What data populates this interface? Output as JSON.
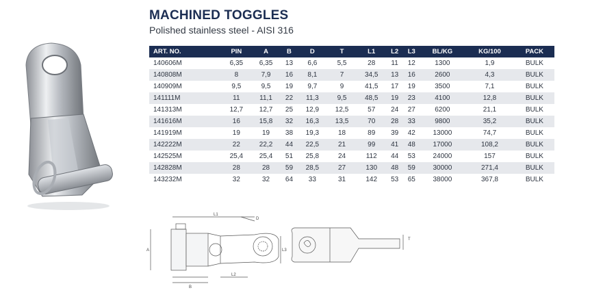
{
  "header": {
    "title": "MACHINED TOGGLES",
    "subtitle": "Polished stainless steel - AISI 316"
  },
  "table": {
    "columns": [
      "ART. NO.",
      "PIN",
      "A",
      "B",
      "D",
      "T",
      "L1",
      "L2",
      "L3",
      "BL/KG",
      "KG/100",
      "PACK"
    ],
    "rows": [
      [
        "140606M",
        "6,35",
        "6,35",
        "13",
        "6,6",
        "5,5",
        "28",
        "11",
        "12",
        "1300",
        "1,9",
        "BULK"
      ],
      [
        "140808M",
        "8",
        "7,9",
        "16",
        "8,1",
        "7",
        "34,5",
        "13",
        "16",
        "2600",
        "4,3",
        "BULK"
      ],
      [
        "140909M",
        "9,5",
        "9,5",
        "19",
        "9,7",
        "9",
        "41,5",
        "17",
        "19",
        "3500",
        "7,1",
        "BULK"
      ],
      [
        "141111M",
        "11",
        "11,1",
        "22",
        "11,3",
        "9,5",
        "48,5",
        "19",
        "23",
        "4100",
        "12,8",
        "BULK"
      ],
      [
        "141313M",
        "12,7",
        "12,7",
        "25",
        "12,9",
        "12,5",
        "57",
        "24",
        "27",
        "6200",
        "21,1",
        "BULK"
      ],
      [
        "141616M",
        "16",
        "15,8",
        "32",
        "16,3",
        "13,5",
        "70",
        "28",
        "33",
        "9800",
        "35,2",
        "BULK"
      ],
      [
        "141919M",
        "19",
        "19",
        "38",
        "19,3",
        "18",
        "89",
        "39",
        "42",
        "13000",
        "74,7",
        "BULK"
      ],
      [
        "142222M",
        "22",
        "22,2",
        "44",
        "22,5",
        "21",
        "99",
        "41",
        "48",
        "17000",
        "108,2",
        "BULK"
      ],
      [
        "142525M",
        "25,4",
        "25,4",
        "51",
        "25,8",
        "24",
        "112",
        "44",
        "53",
        "24000",
        "157",
        "BULK"
      ],
      [
        "142828M",
        "28",
        "28",
        "59",
        "28,5",
        "27",
        "130",
        "48",
        "59",
        "30000",
        "271,4",
        "BULK"
      ],
      [
        "143232M",
        "32",
        "32",
        "64",
        "33",
        "31",
        "142",
        "53",
        "65",
        "38000",
        "367,8",
        "BULK"
      ]
    ]
  },
  "drawing": {
    "labels": {
      "l1": "L1",
      "d": "D",
      "a": "A",
      "l3": "L3",
      "b": "B",
      "l2": "L2",
      "t": "T"
    }
  },
  "colors": {
    "header_bg": "#1b2d52",
    "row_alt": "#e6e8ec",
    "title": "#1b2d52"
  }
}
